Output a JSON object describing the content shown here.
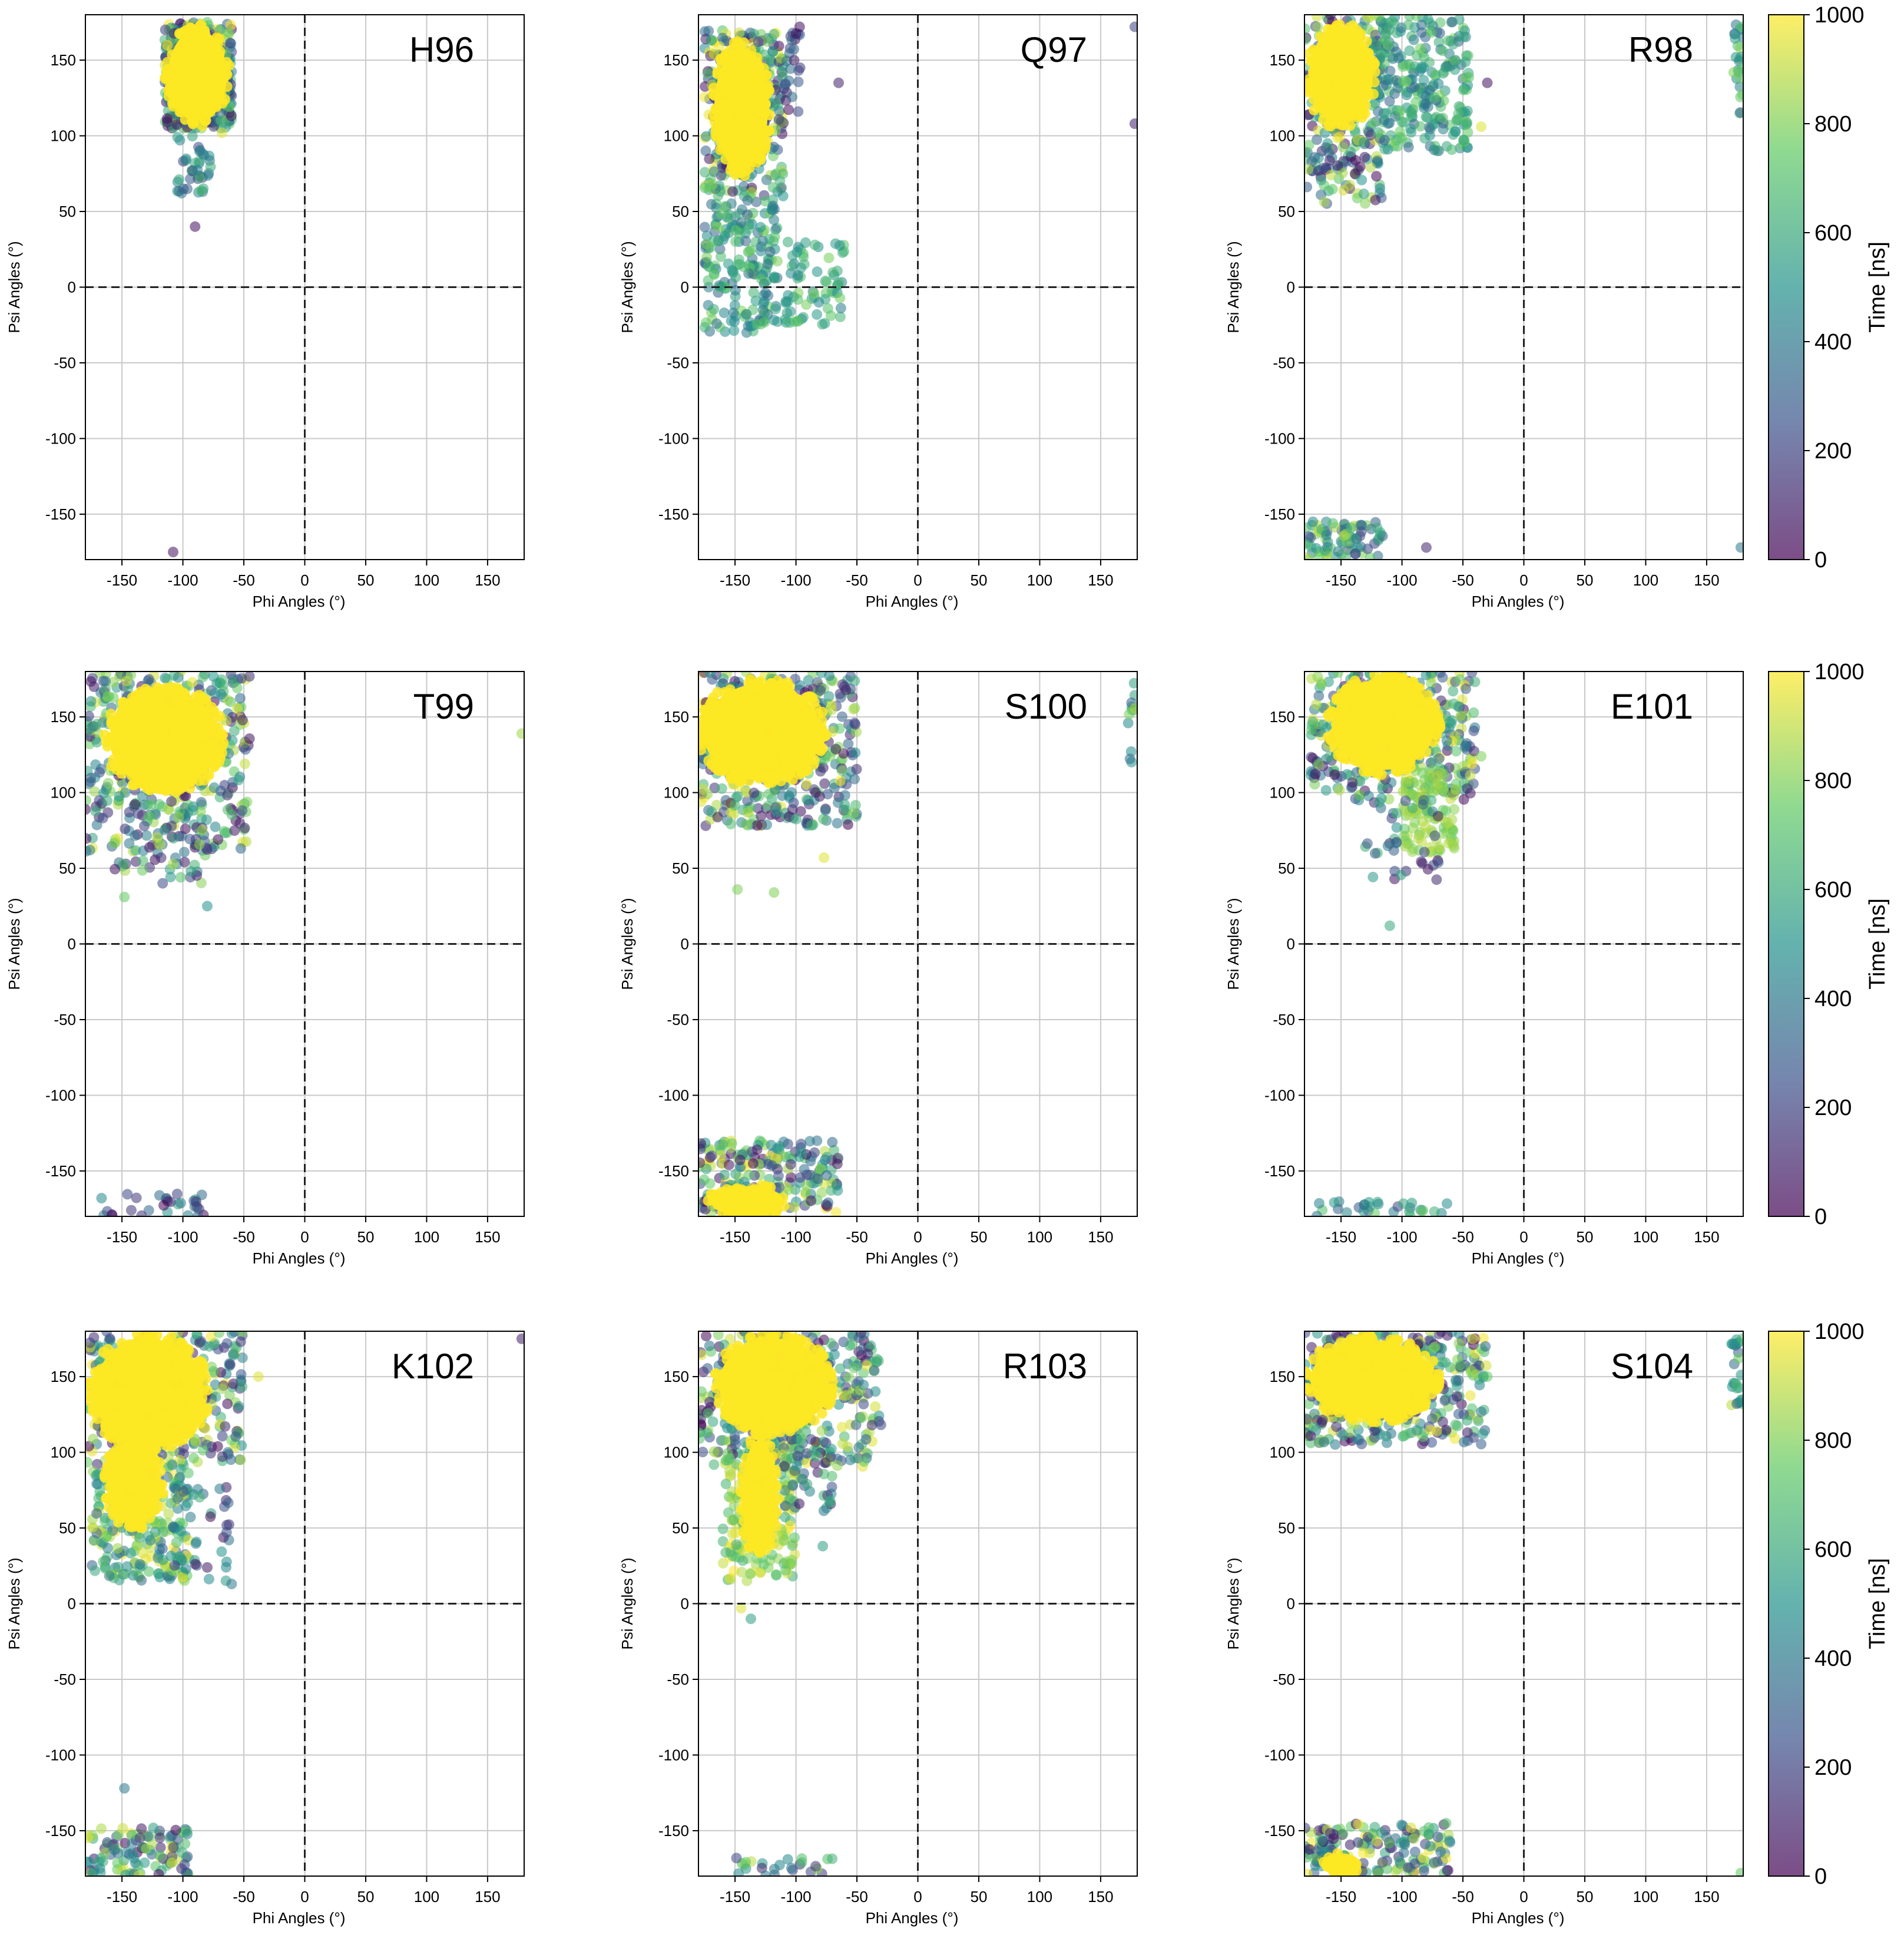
{
  "figure": {
    "colorbar_label": "Time [ns]",
    "colorbar_ticks": [
      "0",
      "200",
      "400",
      "600",
      "800",
      "1000"
    ],
    "colorbar_range": [
      0,
      1000
    ],
    "colormap_colors": [
      "#440154",
      "#3b528b",
      "#21918c",
      "#5ec962",
      "#fde725"
    ],
    "marker_alpha": 0.55
  },
  "chart_data": [
    {
      "type": "scatter",
      "title": "H96",
      "xlabel": "Phi Angles (°)",
      "ylabel": "Psi Angles (°)",
      "xlim": [
        -180,
        180
      ],
      "ylim": [
        -180,
        180
      ],
      "xticks": [
        "-150",
        "-100",
        "-50",
        "0",
        "50",
        "100",
        "150"
      ],
      "yticks": [
        "-150",
        "-100",
        "-50",
        "0",
        "50",
        "100",
        "150"
      ],
      "ref_lines": {
        "x": 0,
        "y": 0,
        "style": "dashed"
      },
      "clusters": [
        {
          "phi": [
            -115,
            -60
          ],
          "psi": [
            105,
            175
          ],
          "n": 420,
          "time": [
            0,
            1000
          ]
        },
        {
          "phi": [
            -105,
            -75
          ],
          "psi": [
            62,
            100
          ],
          "n": 40,
          "time": [
            200,
            700
          ]
        }
      ],
      "core": [
        {
          "phi": -88,
          "psi": 140,
          "rx": 24,
          "ry": 30,
          "time": 1000
        }
      ],
      "outliers": [
        {
          "phi": -108,
          "psi": -175,
          "time": 50
        },
        {
          "phi": -90,
          "psi": 40,
          "time": 50
        },
        {
          "phi": -68,
          "psi": 102,
          "time": 950
        }
      ]
    },
    {
      "type": "scatter",
      "title": "Q97",
      "xlabel": "Phi Angles (°)",
      "ylabel": "Psi Angles (°)",
      "xlim": [
        -180,
        180
      ],
      "ylim": [
        -180,
        180
      ],
      "xticks": [
        "-150",
        "-100",
        "-50",
        "0",
        "50",
        "100",
        "150"
      ],
      "yticks": [
        "-150",
        "-100",
        "-50",
        "0",
        "50",
        "100",
        "150"
      ],
      "ref_lines": {
        "x": 0,
        "y": 0,
        "style": "dashed"
      },
      "clusters": [
        {
          "phi": [
            -175,
            -110
          ],
          "psi": [
            60,
            170
          ],
          "n": 320,
          "time": [
            0,
            1000
          ]
        },
        {
          "phi": [
            -175,
            -115
          ],
          "psi": [
            -30,
            60
          ],
          "n": 200,
          "time": [
            300,
            800
          ]
        },
        {
          "phi": [
            -110,
            -60
          ],
          "psi": [
            -25,
            30
          ],
          "n": 70,
          "time": [
            400,
            800
          ]
        },
        {
          "phi": [
            -110,
            -95
          ],
          "psi": [
            110,
            170
          ],
          "n": 25,
          "time": [
            0,
            400
          ]
        }
      ],
      "core": [
        {
          "phi": -145,
          "psi": 118,
          "rx": 22,
          "ry": 40,
          "time": 1000
        }
      ],
      "outliers": [
        {
          "phi": 178,
          "psi": 172,
          "time": 200
        },
        {
          "phi": 178,
          "psi": 108,
          "time": 100
        },
        {
          "phi": -97,
          "psi": 172,
          "time": 50
        },
        {
          "phi": -65,
          "psi": 135,
          "time": 100
        }
      ]
    },
    {
      "type": "scatter",
      "title": "R98",
      "xlabel": "Phi Angles (°)",
      "ylabel": "Psi Angles (°)",
      "xlim": [
        -180,
        180
      ],
      "ylim": [
        -180,
        180
      ],
      "xticks": [
        "-150",
        "-100",
        "-50",
        "0",
        "50",
        "100",
        "150"
      ],
      "yticks": [
        "-150",
        "-100",
        "-50",
        "0",
        "50",
        "100",
        "150"
      ],
      "ref_lines": {
        "x": 0,
        "y": 0,
        "style": "dashed"
      },
      "clusters": [
        {
          "phi": [
            -180,
            -115
          ],
          "psi": [
            55,
            180
          ],
          "n": 260,
          "time": [
            0,
            1000
          ]
        },
        {
          "phi": [
            -125,
            -45
          ],
          "psi": [
            90,
            180
          ],
          "n": 260,
          "time": [
            300,
            800
          ]
        },
        {
          "phi": [
            -180,
            -115
          ],
          "psi": [
            -180,
            -155
          ],
          "n": 80,
          "time": [
            200,
            900
          ]
        },
        {
          "phi": [
            172,
            180
          ],
          "psi": [
            110,
            175
          ],
          "n": 25,
          "time": [
            300,
            900
          ]
        }
      ],
      "core": [
        {
          "phi": -150,
          "psi": 140,
          "rx": 26,
          "ry": 32,
          "time": 1000
        }
      ],
      "outliers": [
        {
          "phi": -30,
          "psi": 135,
          "time": 50
        },
        {
          "phi": 178,
          "psi": -172,
          "time": 400
        },
        {
          "phi": -80,
          "psi": -172,
          "time": 100
        },
        {
          "phi": -35,
          "psi": 106,
          "time": 950
        }
      ]
    },
    {
      "type": "scatter",
      "title": "T99",
      "xlabel": "Phi Angles (°)",
      "ylabel": "Psi Angles (°)",
      "xlim": [
        -180,
        180
      ],
      "ylim": [
        -180,
        180
      ],
      "xticks": [
        "-150",
        "-100",
        "-50",
        "0",
        "50",
        "100",
        "150"
      ],
      "yticks": [
        "-150",
        "-100",
        "-50",
        "0",
        "50",
        "100",
        "150"
      ],
      "ref_lines": {
        "x": 0,
        "y": 0,
        "style": "dashed"
      },
      "clusters": [
        {
          "phi": [
            -180,
            -45
          ],
          "psi": [
            60,
            180
          ],
          "n": 420,
          "time": [
            0,
            1000
          ]
        },
        {
          "phi": [
            -160,
            -80
          ],
          "psi": [
            40,
            80
          ],
          "n": 50,
          "time": [
            0,
            900
          ]
        },
        {
          "phi": [
            -170,
            -80
          ],
          "psi": [
            -180,
            -165
          ],
          "n": 30,
          "time": [
            0,
            600
          ]
        }
      ],
      "core": [
        {
          "phi": -115,
          "psi": 135,
          "rx": 45,
          "ry": 32,
          "time": 1000
        }
      ],
      "outliers": [
        {
          "phi": 178,
          "psi": 139,
          "time": 850
        },
        {
          "phi": -80,
          "psi": 25,
          "time": 500
        },
        {
          "phi": -148,
          "psi": 31,
          "time": 750
        }
      ]
    },
    {
      "type": "scatter",
      "title": "S100",
      "xlabel": "Phi Angles (°)",
      "ylabel": "Psi Angles (°)",
      "xlim": [
        -180,
        180
      ],
      "ylim": [
        -180,
        180
      ],
      "xticks": [
        "-150",
        "-100",
        "-50",
        "0",
        "50",
        "100",
        "150"
      ],
      "yticks": [
        "-150",
        "-100",
        "-50",
        "0",
        "50",
        "100",
        "150"
      ],
      "ref_lines": {
        "x": 0,
        "y": 0,
        "style": "dashed"
      },
      "clusters": [
        {
          "phi": [
            -180,
            -50
          ],
          "psi": [
            78,
            180
          ],
          "n": 420,
          "time": [
            0,
            1000
          ]
        },
        {
          "phi": [
            -180,
            -65
          ],
          "psi": [
            -180,
            -130
          ],
          "n": 220,
          "time": [
            0,
            1000
          ]
        },
        {
          "phi": [
            172,
            180
          ],
          "psi": [
            120,
            175
          ],
          "n": 12,
          "time": [
            300,
            900
          ]
        }
      ],
      "core": [
        {
          "phi": -128,
          "psi": 140,
          "rx": 48,
          "ry": 32,
          "time": 1000
        },
        {
          "phi": -140,
          "psi": -170,
          "rx": 30,
          "ry": 10,
          "time": 1000
        }
      ],
      "outliers": [
        {
          "phi": -148,
          "psi": 36,
          "time": 800
        },
        {
          "phi": -118,
          "psi": 34,
          "time": 800
        },
        {
          "phi": -77,
          "psi": 57,
          "time": 950
        }
      ]
    },
    {
      "type": "scatter",
      "title": "E101",
      "xlabel": "Phi Angles (°)",
      "ylabel": "Psi Angles (°)",
      "xlim": [
        -180,
        180
      ],
      "ylim": [
        -180,
        180
      ],
      "xticks": [
        "-150",
        "-100",
        "-50",
        "0",
        "50",
        "100",
        "150"
      ],
      "yticks": [
        "-150",
        "-100",
        "-50",
        "0",
        "50",
        "100",
        "150"
      ],
      "ref_lines": {
        "x": 0,
        "y": 0,
        "style": "dashed"
      },
      "clusters": [
        {
          "phi": [
            -175,
            -40
          ],
          "psi": [
            95,
            180
          ],
          "n": 380,
          "time": [
            0,
            1000
          ]
        },
        {
          "phi": [
            -100,
            -55
          ],
          "psi": [
            60,
            115
          ],
          "n": 110,
          "time": [
            750,
            900
          ]
        },
        {
          "phi": [
            -130,
            -70
          ],
          "psi": [
            40,
            100
          ],
          "n": 40,
          "time": [
            0,
            700
          ]
        },
        {
          "phi": [
            -170,
            -60
          ],
          "psi": [
            -180,
            -168
          ],
          "n": 30,
          "time": [
            200,
            800
          ]
        }
      ],
      "core": [
        {
          "phi": -115,
          "psi": 145,
          "rx": 42,
          "ry": 30,
          "time": 1000
        }
      ],
      "outliers": [
        {
          "phi": -110,
          "psi": 12,
          "time": 600
        },
        {
          "phi": -35,
          "psi": 124,
          "time": 800
        }
      ]
    },
    {
      "type": "scatter",
      "title": "K102",
      "xlabel": "Phi Angles (°)",
      "ylabel": "Psi Angles (°)",
      "xlim": [
        -180,
        180
      ],
      "ylim": [
        -180,
        180
      ],
      "xticks": [
        "-150",
        "-100",
        "-50",
        "0",
        "50",
        "100",
        "150"
      ],
      "yticks": [
        "-150",
        "-100",
        "-50",
        "0",
        "50",
        "100",
        "150"
      ],
      "ref_lines": {
        "x": 0,
        "y": 0,
        "style": "dashed"
      },
      "clusters": [
        {
          "phi": [
            -180,
            -50
          ],
          "psi": [
            90,
            180
          ],
          "n": 330,
          "time": [
            0,
            1000
          ]
        },
        {
          "phi": [
            -175,
            -95
          ],
          "psi": [
            15,
            90
          ],
          "n": 250,
          "time": [
            300,
            1000
          ]
        },
        {
          "phi": [
            -110,
            -60
          ],
          "psi": [
            15,
            80
          ],
          "n": 40,
          "time": [
            0,
            700
          ]
        },
        {
          "phi": [
            -180,
            -95
          ],
          "psi": [
            -180,
            -148
          ],
          "n": 110,
          "time": [
            0,
            1000
          ]
        }
      ],
      "core": [
        {
          "phi": -128,
          "psi": 140,
          "rx": 45,
          "ry": 35,
          "time": 1000
        },
        {
          "phi": -140,
          "psi": 80,
          "rx": 22,
          "ry": 28,
          "time": 1000
        }
      ],
      "outliers": [
        {
          "phi": 178,
          "psi": 175,
          "time": 100
        },
        {
          "phi": -148,
          "psi": -122,
          "time": 400
        },
        {
          "phi": -38,
          "psi": 150,
          "time": 950
        },
        {
          "phi": -60,
          "psi": 13,
          "time": 400
        }
      ]
    },
    {
      "type": "scatter",
      "title": "R103",
      "xlabel": "Phi Angles (°)",
      "ylabel": "Psi Angles (°)",
      "xlim": [
        -180,
        180
      ],
      "ylim": [
        -180,
        180
      ],
      "xticks": [
        "-150",
        "-100",
        "-50",
        "0",
        "50",
        "100",
        "150"
      ],
      "yticks": [
        "-150",
        "-100",
        "-50",
        "0",
        "50",
        "100",
        "150"
      ],
      "ref_lines": {
        "x": 0,
        "y": 0,
        "style": "dashed"
      },
      "clusters": [
        {
          "phi": [
            -180,
            -30
          ],
          "psi": [
            90,
            180
          ],
          "n": 380,
          "time": [
            0,
            1000
          ]
        },
        {
          "phi": [
            -160,
            -100
          ],
          "psi": [
            15,
            100
          ],
          "n": 180,
          "time": [
            600,
            1000
          ]
        },
        {
          "phi": [
            -110,
            -70
          ],
          "psi": [
            60,
            110
          ],
          "n": 45,
          "time": [
            0,
            700
          ]
        },
        {
          "phi": [
            -150,
            -70
          ],
          "psi": [
            -180,
            -168
          ],
          "n": 25,
          "time": [
            100,
            900
          ]
        }
      ],
      "core": [
        {
          "phi": -118,
          "psi": 145,
          "rx": 45,
          "ry": 30,
          "time": 1000
        },
        {
          "phi": -130,
          "psi": 70,
          "rx": 14,
          "ry": 38,
          "time": 1000
        }
      ],
      "outliers": [
        {
          "phi": -137,
          "psi": -10,
          "time": 550
        },
        {
          "phi": -145,
          "psi": -3,
          "time": 950
        },
        {
          "phi": -78,
          "psi": 38,
          "time": 550
        }
      ]
    },
    {
      "type": "scatter",
      "title": "S104",
      "xlabel": "Phi Angles (°)",
      "ylabel": "Psi Angles (°)",
      "xlim": [
        -180,
        180
      ],
      "ylim": [
        -180,
        180
      ],
      "xticks": [
        "-150",
        "-100",
        "-50",
        "0",
        "50",
        "100",
        "150"
      ],
      "yticks": [
        "-150",
        "-100",
        "-50",
        "0",
        "50",
        "100",
        "150"
      ],
      "ref_lines": {
        "x": 0,
        "y": 0,
        "style": "dashed"
      },
      "clusters": [
        {
          "phi": [
            -180,
            -30
          ],
          "psi": [
            105,
            180
          ],
          "n": 380,
          "time": [
            0,
            1000
          ]
        },
        {
          "phi": [
            -180,
            -60
          ],
          "psi": [
            -180,
            -145
          ],
          "n": 170,
          "time": [
            0,
            1000
          ]
        },
        {
          "phi": [
            170,
            180
          ],
          "psi": [
            130,
            178
          ],
          "n": 25,
          "time": [
            300,
            900
          ]
        }
      ],
      "core": [
        {
          "phi": -125,
          "psi": 148,
          "rx": 50,
          "ry": 26,
          "time": 1000
        },
        {
          "phi": -150,
          "psi": -172,
          "rx": 16,
          "ry": 7,
          "time": 1000
        }
      ],
      "outliers": [
        {
          "phi": 178,
          "psi": -178,
          "time": 750
        },
        {
          "phi": -30,
          "psi": 150,
          "time": 750
        },
        {
          "phi": -42,
          "psi": 175,
          "time": 950
        }
      ]
    }
  ]
}
